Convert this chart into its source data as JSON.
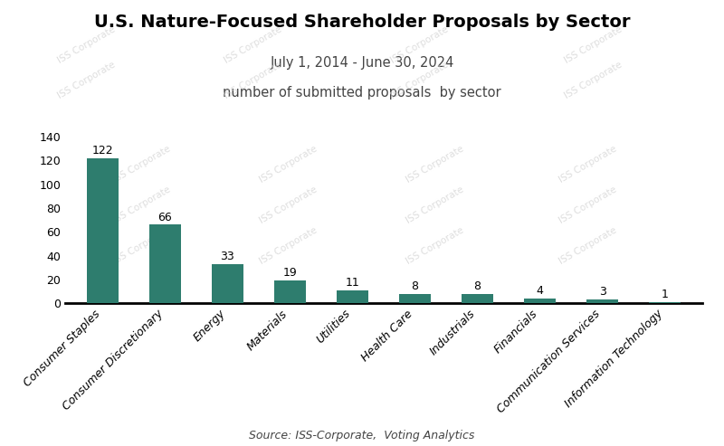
{
  "title": "U.S. Nature-Focused Shareholder Proposals by Sector",
  "subtitle1": "July 1, 2014 - June 30, 2024",
  "subtitle2": "number of submitted proposals  by sector",
  "source": "Source: ISS-Corporate,  Voting Analytics",
  "categories": [
    "Consumer Staples",
    "Consumer Discretionary",
    "Energy",
    "Materials",
    "Utilities",
    "Health Care",
    "Industrials",
    "Financials",
    "Communication Services",
    "Information Technology"
  ],
  "values": [
    122,
    66,
    33,
    19,
    11,
    8,
    8,
    4,
    3,
    1
  ],
  "bar_color": "#2e7d6e",
  "background_color": "#ffffff",
  "ylim": [
    0,
    150
  ],
  "yticks": [
    0,
    20,
    40,
    60,
    80,
    100,
    120,
    140
  ],
  "title_fontsize": 14,
  "subtitle_fontsize": 10.5,
  "label_fontsize": 9,
  "tick_label_fontsize": 9,
  "source_fontsize": 9,
  "watermark_color": "#d0d0d0"
}
